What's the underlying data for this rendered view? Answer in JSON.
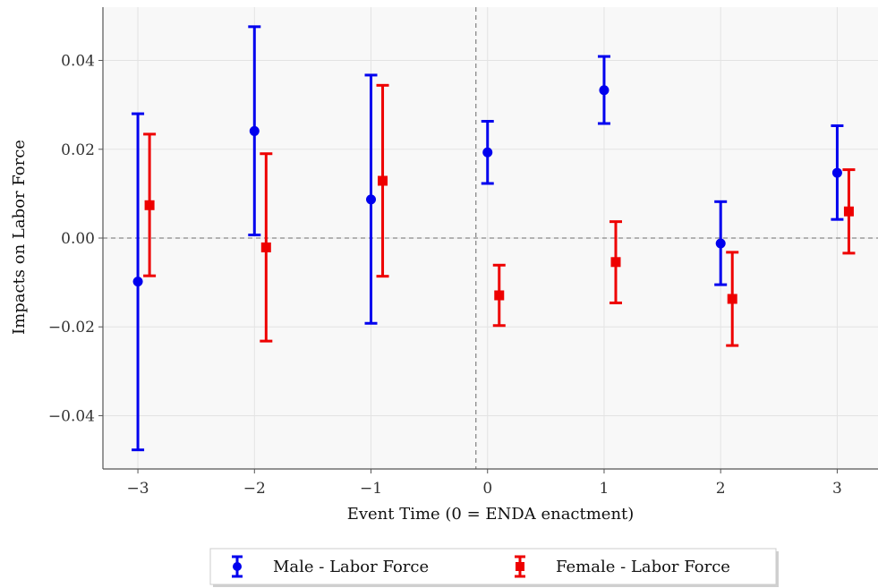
{
  "chart_data": {
    "type": "scatter",
    "title": "",
    "xlabel": "Event Time (0 = ENDA enactment)",
    "ylabel": "Impacts on Labor Force",
    "xlim": [
      -3.3,
      3.35
    ],
    "ylim": [
      -0.052,
      0.052
    ],
    "xticks": [
      -3,
      -2,
      -1,
      0,
      1,
      2,
      3
    ],
    "xtick_labels": [
      "−3",
      "−2",
      "−1",
      "0",
      "1",
      "2",
      "3"
    ],
    "yticks": [
      -0.04,
      -0.02,
      0.0,
      0.02,
      0.04
    ],
    "ytick_labels": [
      "−0.04",
      "−0.02",
      "0.00",
      "0.02",
      "0.04"
    ],
    "grid": true,
    "reference_lines": {
      "horizontal": 0.0,
      "vertical": -0.1
    },
    "legend_position": "bottom-center (below plot)",
    "series": [
      {
        "name": "Male - Labor Force",
        "color": "#0000ee",
        "marker": "circle",
        "x": [
          -3,
          -2,
          -1,
          0,
          1,
          2,
          3
        ],
        "y": [
          -0.0098,
          0.0241,
          0.0087,
          0.0193,
          0.0333,
          -0.0012,
          0.0147
        ],
        "lower": [
          -0.0477,
          0.0007,
          -0.0192,
          0.0123,
          0.0258,
          -0.0105,
          0.0042
        ],
        "upper": [
          0.028,
          0.0476,
          0.0367,
          0.0263,
          0.0409,
          0.0082,
          0.0253
        ]
      },
      {
        "name": "Female - Labor Force",
        "color": "#ee0000",
        "marker": "square",
        "x": [
          -2.9,
          -1.9,
          -0.9,
          0.1,
          1.1,
          2.1,
          3.1
        ],
        "y": [
          0.0074,
          -0.0021,
          0.0129,
          -0.0129,
          -0.0054,
          -0.0137,
          0.006
        ],
        "lower": [
          -0.0085,
          -0.0232,
          -0.0086,
          -0.0197,
          -0.0146,
          -0.0242,
          -0.0034
        ],
        "upper": [
          0.0234,
          0.019,
          0.0344,
          -0.0061,
          0.0037,
          -0.0032,
          0.0154
        ]
      }
    ]
  }
}
